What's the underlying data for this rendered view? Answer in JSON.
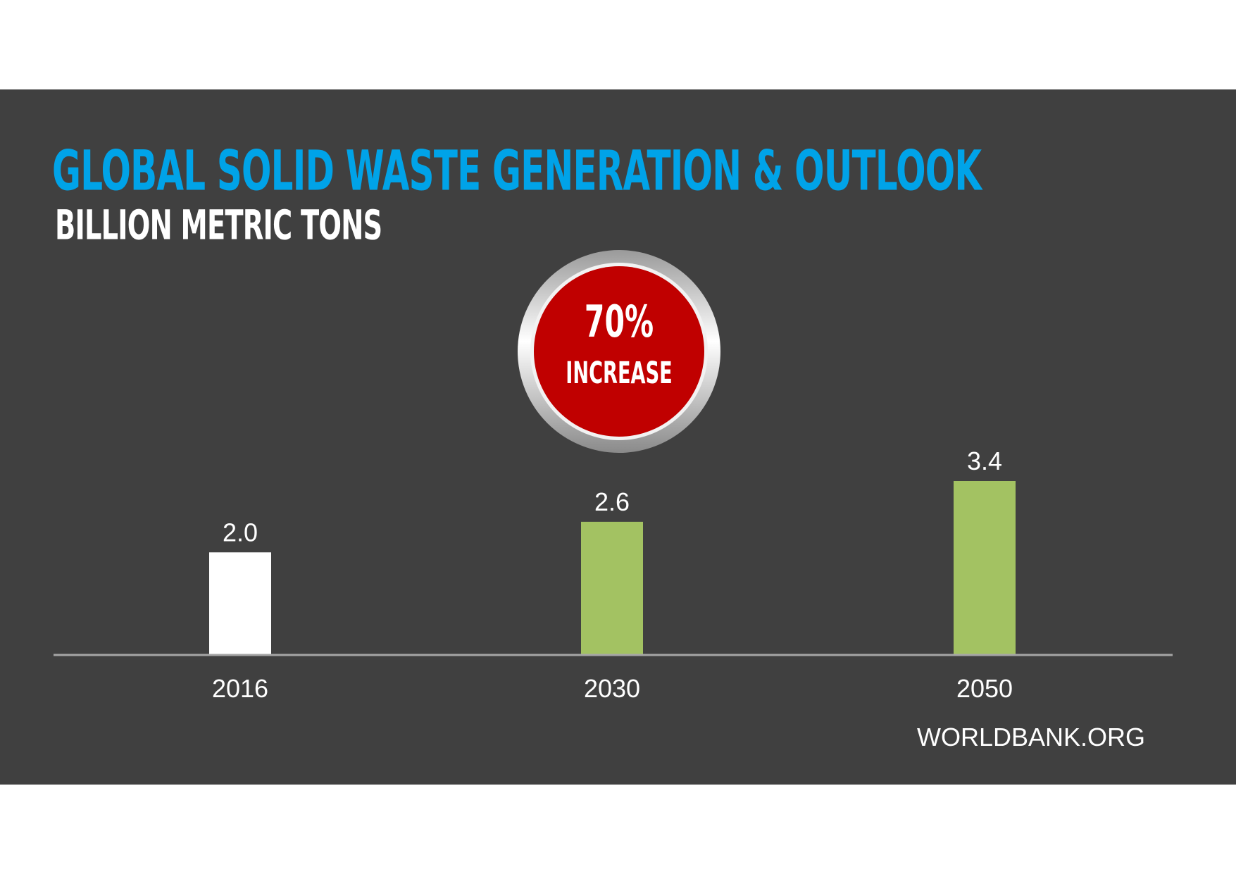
{
  "chart_data": {
    "type": "bar",
    "title": "GLOBAL SOLID WASTE GENERATION & OUTLOOK",
    "subtitle": "BILLION METRIC TONS",
    "categories": [
      "2016",
      "2030",
      "2050"
    ],
    "values": [
      2.0,
      2.6,
      3.4
    ],
    "value_labels": [
      "2.0",
      "2.6",
      "3.4"
    ],
    "bar_colors": [
      "#ffffff",
      "#a3c262",
      "#a3c262"
    ],
    "ylim": [
      0,
      3.4
    ],
    "grid": false,
    "legend": "none",
    "annotation": {
      "value": "70%",
      "label": "INCREASE",
      "color": "#c00000"
    }
  },
  "source": "WORLDBANK.ORG",
  "colors": {
    "background": "#404040",
    "title": "#00a3e8",
    "axis": "#a6a6a6"
  }
}
